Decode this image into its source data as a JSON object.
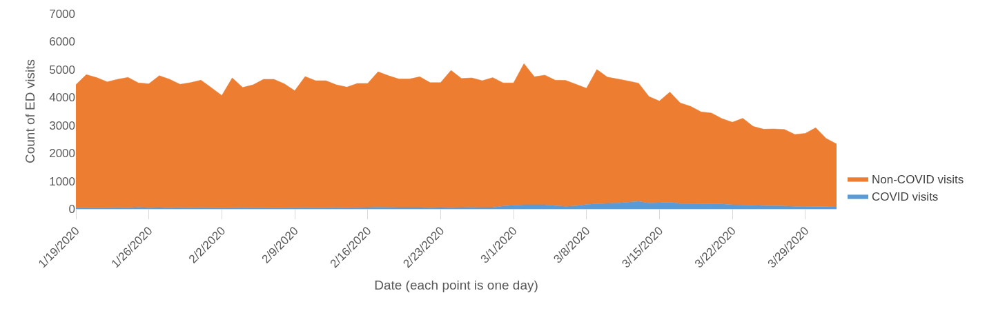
{
  "chart_data": {
    "type": "area",
    "stacked": true,
    "xlabel": "Date (each point is one day)",
    "ylabel": "Count of ED visits",
    "x": [
      "2020-01-19",
      "2020-01-20",
      "2020-01-21",
      "2020-01-22",
      "2020-01-23",
      "2020-01-24",
      "2020-01-25",
      "2020-01-26",
      "2020-01-27",
      "2020-01-28",
      "2020-01-29",
      "2020-01-30",
      "2020-01-31",
      "2020-02-01",
      "2020-02-02",
      "2020-02-03",
      "2020-02-04",
      "2020-02-05",
      "2020-02-06",
      "2020-02-07",
      "2020-02-08",
      "2020-02-09",
      "2020-02-10",
      "2020-02-11",
      "2020-02-12",
      "2020-02-13",
      "2020-02-14",
      "2020-02-15",
      "2020-02-16",
      "2020-02-17",
      "2020-02-18",
      "2020-02-19",
      "2020-02-20",
      "2020-02-21",
      "2020-02-22",
      "2020-02-23",
      "2020-02-24",
      "2020-02-25",
      "2020-02-26",
      "2020-02-27",
      "2020-02-28",
      "2020-02-29",
      "2020-03-01",
      "2020-03-02",
      "2020-03-03",
      "2020-03-04",
      "2020-03-05",
      "2020-03-06",
      "2020-03-07",
      "2020-03-08",
      "2020-03-09",
      "2020-03-10",
      "2020-03-11",
      "2020-03-12",
      "2020-03-13",
      "2020-03-14",
      "2020-03-15",
      "2020-03-16",
      "2020-03-17",
      "2020-03-18",
      "2020-03-19",
      "2020-03-20",
      "2020-03-21",
      "2020-03-22",
      "2020-03-23",
      "2020-03-24",
      "2020-03-25",
      "2020-03-26",
      "2020-03-27",
      "2020-03-28",
      "2020-03-29",
      "2020-03-30",
      "2020-03-31",
      "2020-04-01"
    ],
    "series": [
      {
        "name": "COVID visits",
        "color": "#5b9bd5",
        "values": [
          40,
          40,
          35,
          40,
          45,
          40,
          55,
          45,
          50,
          40,
          45,
          40,
          45,
          40,
          35,
          40,
          45,
          40,
          40,
          35,
          40,
          40,
          45,
          40,
          40,
          45,
          40,
          45,
          50,
          60,
          55,
          50,
          50,
          50,
          45,
          50,
          45,
          50,
          55,
          50,
          50,
          105,
          130,
          150,
          150,
          150,
          120,
          90,
          110,
          160,
          185,
          200,
          210,
          240,
          270,
          210,
          220,
          240,
          190,
          190,
          185,
          180,
          180,
          150,
          140,
          130,
          120,
          110,
          105,
          95,
          90,
          85,
          80,
          75
        ]
      },
      {
        "name": "Non-COVID visits",
        "color": "#ed7d31",
        "values": [
          4420,
          4780,
          4675,
          4520,
          4605,
          4680,
          4465,
          4445,
          4730,
          4610,
          4425,
          4490,
          4575,
          4310,
          4035,
          4660,
          4315,
          4410,
          4610,
          4615,
          4450,
          4200,
          4705,
          4560,
          4560,
          4405,
          4330,
          4455,
          4450,
          4860,
          4725,
          4610,
          4610,
          4690,
          4485,
          4480,
          4925,
          4630,
          4645,
          4550,
          4660,
          4415,
          4390,
          5060,
          4590,
          4650,
          4500,
          4520,
          4360,
          4170,
          4815,
          4530,
          4450,
          4350,
          4240,
          3820,
          3650,
          3950,
          3610,
          3490,
          3295,
          3260,
          3060,
          2960,
          3110,
          2830,
          2740,
          2760,
          2745,
          2575,
          2620,
          2825,
          2450,
          2255
        ]
      }
    ],
    "xlim": [
      "2020-01-19",
      "2020-04-01"
    ],
    "xticks": [
      {
        "value": "2020-01-19",
        "label": "1/19/2020"
      },
      {
        "value": "2020-01-26",
        "label": "1/26/2020"
      },
      {
        "value": "2020-02-02",
        "label": "2/2/2020"
      },
      {
        "value": "2020-02-09",
        "label": "2/9/2020"
      },
      {
        "value": "2020-02-16",
        "label": "2/16/2020"
      },
      {
        "value": "2020-02-23",
        "label": "2/23/2020"
      },
      {
        "value": "2020-03-01",
        "label": "3/1/2020"
      },
      {
        "value": "2020-03-08",
        "label": "3/8/2020"
      },
      {
        "value": "2020-03-15",
        "label": "3/15/2020"
      },
      {
        "value": "2020-03-22",
        "label": "3/22/2020"
      },
      {
        "value": "2020-03-29",
        "label": "3/29/2020"
      }
    ],
    "ylim": [
      0,
      7000
    ],
    "yticks": [
      0,
      1000,
      2000,
      3000,
      4000,
      5000,
      6000,
      7000
    ],
    "grid": false,
    "legend": "right"
  }
}
